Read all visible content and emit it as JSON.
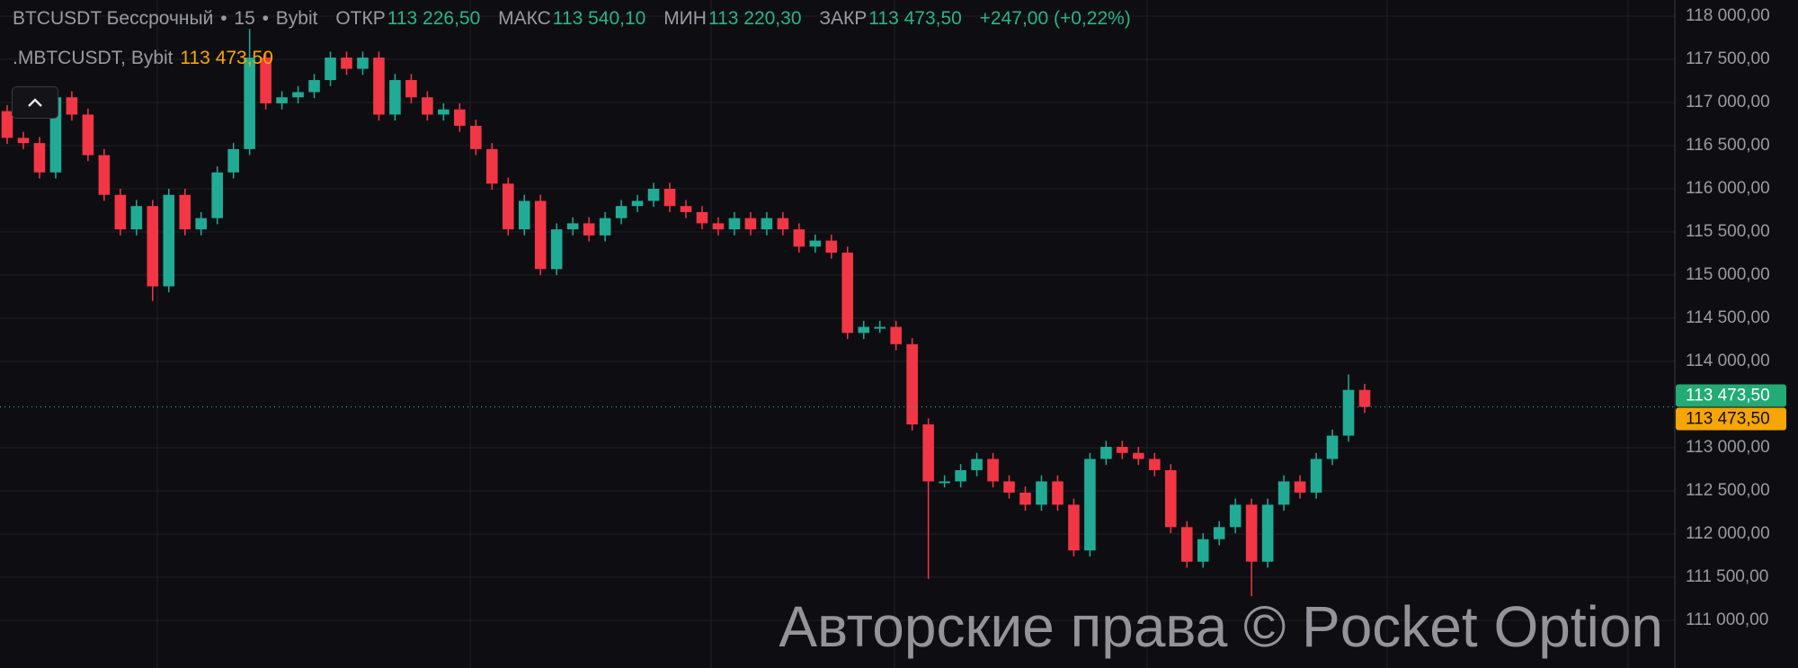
{
  "header": {
    "symbol": "BTCUSDT Бессрочный",
    "interval": "15",
    "exchange": "Bybit",
    "sep": "•",
    "open_label": "ОТКР",
    "open": "113 226,50",
    "high_label": "МАКС",
    "high": "113 540,10",
    "low_label": "МИН",
    "low": "113 220,30",
    "close_label": "ЗАКР",
    "close": "113 473,50",
    "change": "+247,00 (+0,22%)"
  },
  "indicator": {
    "name": ".MBTCUSDT, Bybit",
    "value": "113 473,50"
  },
  "collapse_icon": "chevron-up-icon",
  "price_tags": {
    "last": "113 473,50",
    "mark": "113 473,50"
  },
  "watermark": "Авторские права © Pocket Option",
  "colors": {
    "up": "#22ab94",
    "down": "#f23645",
    "mark": "#f7a600",
    "background": "#0e0e12",
    "grid": "#1f1f26"
  },
  "chart_data": {
    "type": "candlestick",
    "y_axis": {
      "min": 111000,
      "max": 118000,
      "ticks": [
        "118 000,00",
        "117 500,00",
        "117 000,00",
        "116 500,00",
        "116 000,00",
        "115 500,00",
        "115 000,00",
        "114 500,00",
        "114 000,00",
        "113 000,00",
        "112 500,00",
        "112 000,00",
        "111 500,00",
        "111 000,00"
      ],
      "tick_values": [
        118000,
        117500,
        117000,
        116500,
        116000,
        115500,
        115000,
        114500,
        114000,
        113000,
        112500,
        112000,
        111500,
        111000
      ]
    },
    "grid": true,
    "last_price": 113473.5,
    "first_open": 116900,
    "closes": [
      116590,
      116530,
      116190,
      117060,
      116860,
      116390,
      115930,
      115530,
      115800,
      114870,
      115930,
      115530,
      115660,
      116190,
      116460,
      117520,
      116990,
      117060,
      117120,
      117260,
      117520,
      117390,
      117520,
      116860,
      117260,
      117060,
      116860,
      116920,
      116730,
      116460,
      116060,
      115530,
      115860,
      115070,
      115530,
      115600,
      115460,
      115660,
      115800,
      115860,
      116000,
      115800,
      115730,
      115600,
      115530,
      115660,
      115530,
      115660,
      115530,
      115330,
      115400,
      115260,
      114330,
      114400,
      114400,
      114200,
      113270,
      112610,
      112610,
      112740,
      112870,
      112610,
      112480,
      112340,
      112610,
      112340,
      111810,
      112870,
      113010,
      112940,
      112870,
      112740,
      112080,
      111680,
      111940,
      112080,
      112340,
      111680,
      112340,
      112610,
      112480,
      112870,
      113140,
      113670,
      113473.5
    ],
    "notable_lows": [
      {
        "index": 9,
        "low": 114700
      },
      {
        "index": 57,
        "low": 111480
      },
      {
        "index": 77,
        "low": 111280
      }
    ],
    "notable_highs": [
      {
        "index": 15,
        "high": 117850
      },
      {
        "index": 83,
        "high": 113850
      }
    ]
  }
}
